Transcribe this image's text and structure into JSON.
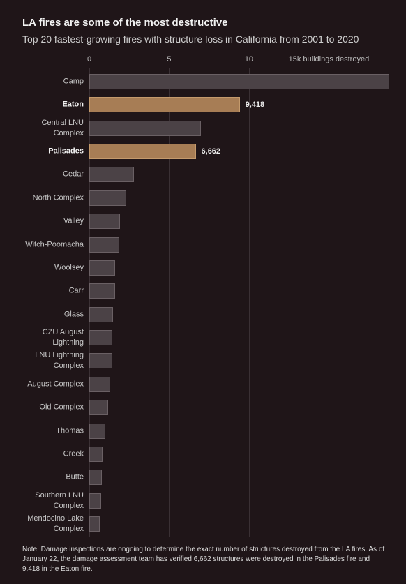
{
  "chart_data": {
    "type": "bar",
    "orientation": "horizontal",
    "title": "LA fires are some of the most destructive",
    "subtitle": "Top 20 fastest-growing fires with structure loss in California from 2001 to 2020",
    "categories": [
      "Camp",
      "Eaton",
      "Central LNU Complex",
      "Palisades",
      "Cedar",
      "North Complex",
      "Valley",
      "Witch-Poomacha",
      "Woolsey",
      "Carr",
      "Glass",
      "CZU August Lightning",
      "LNU Lightning Complex",
      "August Complex",
      "Old Complex",
      "Thomas",
      "Creek",
      "Butte",
      "Southern LNU Complex",
      "Mendocino Lake Complex"
    ],
    "values": [
      18.8,
      9.418,
      7.0,
      6.662,
      2.8,
      2.3,
      1.9,
      1.88,
      1.6,
      1.6,
      1.5,
      1.45,
      1.45,
      1.3,
      1.2,
      1.0,
      0.85,
      0.8,
      0.75,
      0.65
    ],
    "value_labels": [
      null,
      "9,418",
      null,
      "6,662",
      null,
      null,
      null,
      null,
      null,
      null,
      null,
      null,
      null,
      null,
      null,
      null,
      null,
      null,
      null,
      null
    ],
    "color": "#4b4246",
    "highlight_color": "#a77d55",
    "colors": [
      "#4b4246",
      "#a77d55",
      "#4b4246",
      "#a77d55",
      "#4b4246",
      "#4b4246",
      "#4b4246",
      "#4b4246",
      "#4b4246",
      "#4b4246",
      "#4b4246",
      "#4b4246",
      "#4b4246",
      "#4b4246",
      "#4b4246",
      "#4b4246",
      "#4b4246",
      "#4b4246",
      "#4b4246",
      "#4b4246"
    ],
    "xlim": [
      0,
      19
    ],
    "xticks": [
      0,
      5,
      10,
      {
        "value": 15,
        "label": "15k buildings destroyed"
      }
    ],
    "grid": true,
    "note": "Note: Damage inspections are ongoing to determine the exact number of structures destroyed from the LA fires. As of January 22, the damage assessment team has verified 6,662 structures were destroyed in the Palisades fire and 9,418 in the Eaton fire."
  }
}
